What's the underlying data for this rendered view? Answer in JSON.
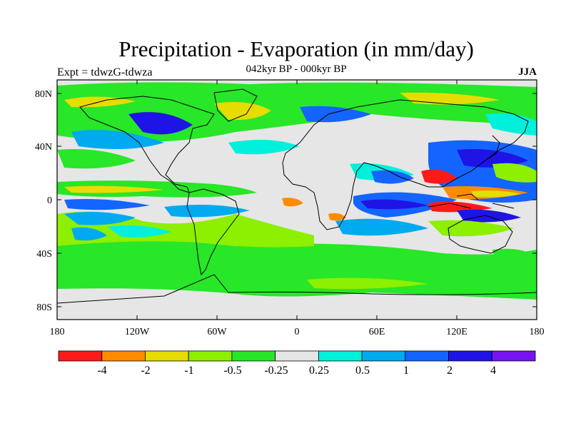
{
  "title": "Precipitation - Evaporation (in mm/day)",
  "subtitle": "042kyr BP - 000kyr BP",
  "left_string": "Expt = tdwzG-tdwza",
  "right_string": "JJA",
  "colors": {
    "ocean_neutral": "#e6e6e6",
    "coast": "#000000",
    "bins": [
      "#ff1a1a",
      "#ff8c00",
      "#e6dc00",
      "#8cf000",
      "#28e628",
      "#e6e6e6",
      "#00f0dc",
      "#00aaf0",
      "#1464ff",
      "#1e14e6",
      "#7814f0"
    ]
  },
  "map": {
    "projection": "cylindrical-equidistant",
    "lon_range": [
      -180,
      180
    ],
    "lat_range": [
      -90,
      90
    ],
    "x_ticks": [
      "180",
      "120W",
      "60W",
      "0",
      "60E",
      "120E",
      "180"
    ],
    "y_ticks": [
      "80N",
      "40N",
      "0",
      "40S",
      "80S"
    ]
  },
  "colorbar": {
    "labels": [
      "-4",
      "-2",
      "-1",
      "-0.5",
      "-0.25",
      "0.25",
      "0.5",
      "1",
      "2",
      "4"
    ]
  }
}
